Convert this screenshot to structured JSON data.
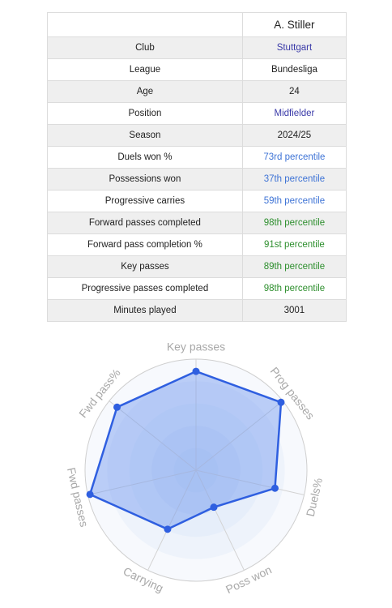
{
  "player": {
    "name": "A. Stiller"
  },
  "rows": [
    {
      "label": "Club",
      "value": "Stuttgart",
      "style": "link"
    },
    {
      "label": "League",
      "value": "Bundesliga",
      "style": "plain"
    },
    {
      "label": "Age",
      "value": "24",
      "style": "plain"
    },
    {
      "label": "Position",
      "value": "Midfielder",
      "style": "link"
    },
    {
      "label": "Season",
      "value": "2024/25",
      "style": "plain"
    },
    {
      "label": "Duels won %",
      "value": "73rd percentile",
      "style": "blue"
    },
    {
      "label": "Possessions won",
      "value": "37th percentile",
      "style": "blue"
    },
    {
      "label": "Progressive carries",
      "value": "59th percentile",
      "style": "blue"
    },
    {
      "label": "Forward passes completed",
      "value": "98th percentile",
      "style": "green"
    },
    {
      "label": "Forward pass completion %",
      "value": "91st percentile",
      "style": "green"
    },
    {
      "label": "Key passes",
      "value": "89th percentile",
      "style": "green"
    },
    {
      "label": "Progressive passes completed",
      "value": "98th percentile",
      "style": "green"
    },
    {
      "label": "Minutes played",
      "value": "3001",
      "style": "plain"
    }
  ],
  "colors": {
    "link": "#3a3aa8",
    "blue_percentile": "#3f74d6",
    "green_percentile": "#2e8f2e",
    "radar_line": "#2f5fe0",
    "radar_fill": "#6f97f0"
  },
  "chart_data": {
    "type": "radar",
    "range": [
      0,
      100
    ],
    "axes": [
      "Key passes",
      "Prog passes",
      "Duels%",
      "Poss won",
      "Carrying",
      "Fwd passes",
      "Fwd pass%"
    ],
    "values": [
      89,
      98,
      73,
      37,
      59,
      98,
      91
    ]
  }
}
